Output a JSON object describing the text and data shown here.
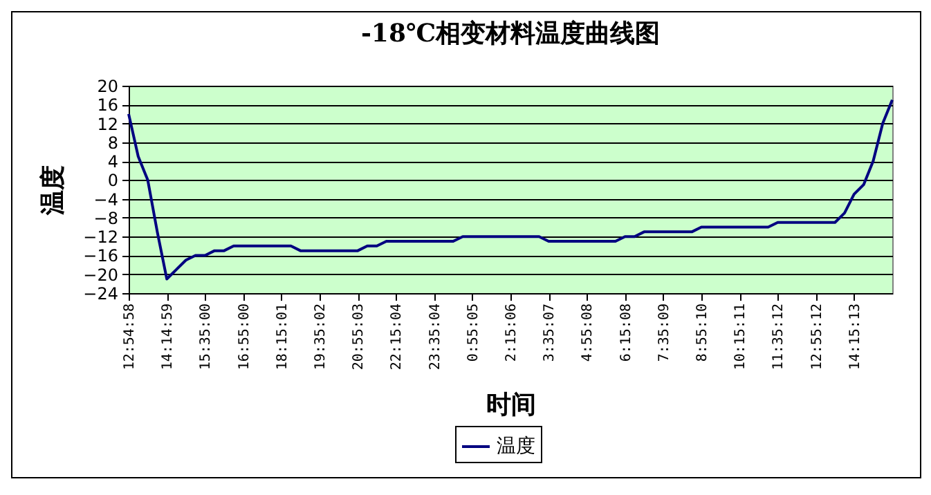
{
  "chart_data": {
    "type": "line",
    "title": "-18℃相变材料温度曲线图",
    "xlabel": "时间",
    "ylabel": "温度",
    "categories": [
      "12:54:58",
      null,
      null,
      null,
      "14:14:59",
      null,
      null,
      null,
      "15:35:00",
      null,
      null,
      null,
      "16:55:00",
      null,
      null,
      null,
      "18:15:01",
      null,
      null,
      null,
      "19:35:02",
      null,
      null,
      null,
      "20:55:03",
      null,
      null,
      null,
      "22:15:04",
      null,
      null,
      null,
      "23:35:04",
      null,
      null,
      null,
      "0:55:05",
      null,
      null,
      null,
      "2:15:06",
      null,
      null,
      null,
      "3:35:07",
      null,
      null,
      null,
      "4:55:08",
      null,
      null,
      null,
      "6:15:08",
      null,
      null,
      null,
      "7:35:09",
      null,
      null,
      null,
      "8:55:10",
      null,
      null,
      null,
      "10:15:11",
      null,
      null,
      null,
      "11:35:12",
      null,
      null,
      null,
      "12:55:12",
      null,
      null,
      null,
      "14:15:13",
      null,
      null,
      null,
      null
    ],
    "series": [
      {
        "name": "温度",
        "color": "#000080",
        "values": [
          14,
          5,
          0,
          -11,
          -21,
          -19,
          -17,
          -16,
          -16,
          -15,
          -15,
          -14,
          -14,
          -14,
          -14,
          -14,
          -14,
          -14,
          -15,
          -15,
          -15,
          -15,
          -15,
          -15,
          -15,
          -14,
          -14,
          -13,
          -13,
          -13,
          -13,
          -13,
          -13,
          -13,
          -13,
          -12,
          -12,
          -12,
          -12,
          -12,
          -12,
          -12,
          -12,
          -12,
          -13,
          -13,
          -13,
          -13,
          -13,
          -13,
          -13,
          -13,
          -12,
          -12,
          -11,
          -11,
          -11,
          -11,
          -11,
          -11,
          -10,
          -10,
          -10,
          -10,
          -10,
          -10,
          -10,
          -10,
          -9,
          -9,
          -9,
          -9,
          -9,
          -9,
          -9,
          -7,
          -3,
          -1,
          4,
          12,
          17
        ]
      }
    ],
    "ylim": [
      -24,
      20
    ],
    "yticks": [
      -24,
      -20,
      -16,
      -12,
      -8,
      -4,
      0,
      4,
      8,
      12,
      16,
      20
    ],
    "grid": "y",
    "legend": "bottom",
    "marker": "none",
    "line_style": "solid"
  }
}
